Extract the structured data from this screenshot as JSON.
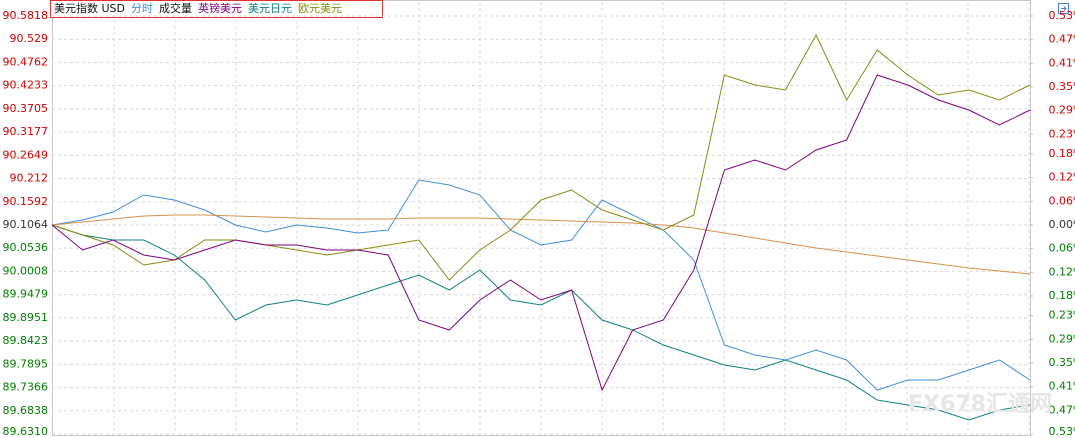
{
  "chart_data": {
    "type": "line",
    "legend": {
      "title": "美元指数 USD",
      "extra": "成交量"
    },
    "watermark": "FX678汇通网",
    "up_color": "#d00000",
    "down_color": "#008000",
    "flat_color": "#333333",
    "grid": true,
    "ylim": [
      89.631,
      90.5818
    ],
    "yticks": [
      90.5818,
      90.529,
      90.4762,
      90.4233,
      90.3705,
      90.3177,
      90.2649,
      90.212,
      90.1592,
      90.1064,
      90.0536,
      {
        "value": 90.0008,
        "label": "90.0008"
      },
      89.9479,
      89.8951,
      89.8423,
      89.7895,
      89.7366,
      89.6838,
      {
        "value": 89.631,
        "label": "89.6310"
      }
    ],
    "y2lim": [
      -0.53,
      0.53
    ],
    "y2ticks": [
      {
        "value": 0.53,
        "label": "0.53%"
      },
      {
        "value": 0.47,
        "label": "0.47%"
      },
      {
        "value": 0.41,
        "label": "0.41%"
      },
      {
        "value": 0.35,
        "label": "0.35%"
      },
      {
        "value": 0.29,
        "label": "0.29%"
      },
      {
        "value": 0.23,
        "label": "0.23%"
      },
      {
        "value": 0.18,
        "label": "0.18%"
      },
      {
        "value": 0.12,
        "label": "0.12%"
      },
      {
        "value": 0.06,
        "label": "0.06%"
      },
      {
        "value": 0,
        "label": "0.00%"
      },
      {
        "value": -0.06,
        "label": "0.06%"
      },
      {
        "value": -0.12,
        "label": "0.12%"
      },
      {
        "value": -0.18,
        "label": "0.18%"
      },
      {
        "value": -0.23,
        "label": "0.23%"
      },
      {
        "value": -0.29,
        "label": "0.29%"
      },
      {
        "value": -0.35,
        "label": "0.35%"
      },
      {
        "value": -0.41,
        "label": "0.41%"
      },
      {
        "value": -0.47,
        "label": "0.47%"
      },
      {
        "value": -0.53,
        "label": "0.53%"
      }
    ],
    "series": [
      {
        "name": "分时",
        "color": "#3f8fe0",
        "values": [
          90.1064,
          90.1178,
          90.136,
          90.1746,
          90.1633,
          90.1405,
          90.1064,
          90.0905,
          90.1064,
          90.0996,
          90.0882,
          90.095,
          90.2087,
          90.1974,
          90.1746,
          90.095,
          90.0609,
          90.0723,
          90.1633,
          90.1291,
          90.095,
          90.0268,
          89.8334,
          89.8107,
          89.7993,
          89.8221,
          89.7993,
          89.7311,
          89.7538,
          89.7538,
          89.7766,
          89.7993,
          89.7538
        ]
      },
      {
        "color": "#d9914a",
        "values": [
          90.1064,
          90.1132,
          90.12,
          90.1269,
          90.1291,
          90.1291,
          90.1269,
          90.1246,
          90.1223,
          90.12,
          90.12,
          90.12,
          90.1223,
          90.1223,
          90.1223,
          90.12,
          90.1178,
          90.1155,
          90.1132,
          90.1109,
          90.1064,
          90.0996,
          90.0882,
          90.0768,
          90.0654,
          90.0541,
          90.045,
          90.0359,
          90.0268,
          90.0177,
          90.0086,
          90.0018,
          89.9949
        ]
      },
      {
        "name": "美元日元",
        "color": "#118080",
        "values": [
          90.1064,
          90.0836,
          90.0723,
          90.0723,
          90.0381,
          89.9813,
          89.8903,
          89.9244,
          89.9358,
          89.9244,
          89.9472,
          89.9699,
          89.9927,
          89.9585,
          90.004,
          89.9358,
          89.9244,
          89.9585,
          89.8903,
          89.8675,
          89.8334,
          89.8107,
          89.7879,
          89.7766,
          89.7993,
          89.7766,
          89.7538,
          89.7083,
          89.6969,
          89.6856,
          89.6628,
          89.6856,
          89.6969
        ]
      },
      {
        "name": "欧元美元",
        "color": "#8a8a10",
        "values": [
          90.1064,
          90.0836,
          90.0609,
          90.0154,
          90.0268,
          90.0723,
          90.0723,
          90.0609,
          90.0495,
          90.0381,
          90.0495,
          90.0609,
          90.0723,
          89.9813,
          90.0495,
          90.095,
          90.1633,
          90.186,
          90.1405,
          90.1178,
          90.095,
          90.1291,
          90.4476,
          90.4248,
          90.4135,
          90.5386,
          90.3907,
          90.5045,
          90.4476,
          90.4021,
          90.4135,
          90.3907,
          90.4248
        ]
      },
      {
        "name": "英镑美元",
        "color": "#800080",
        "values": [
          90.1064,
          90.0495,
          90.0723,
          90.0381,
          90.0268,
          90.0495,
          90.0723,
          90.0609,
          90.0609,
          90.0495,
          90.0495,
          90.0381,
          89.8903,
          89.8675,
          89.9358,
          89.9813,
          89.9358,
          89.9585,
          89.7311,
          89.8675,
          89.8903,
          90.004,
          90.2315,
          90.2542,
          90.2315,
          90.277,
          90.2997,
          90.4476,
          90.4248,
          90.3907,
          90.368,
          90.3339,
          90.368
        ]
      }
    ],
    "legend_order": [
      0,
      4,
      2,
      3
    ]
  }
}
